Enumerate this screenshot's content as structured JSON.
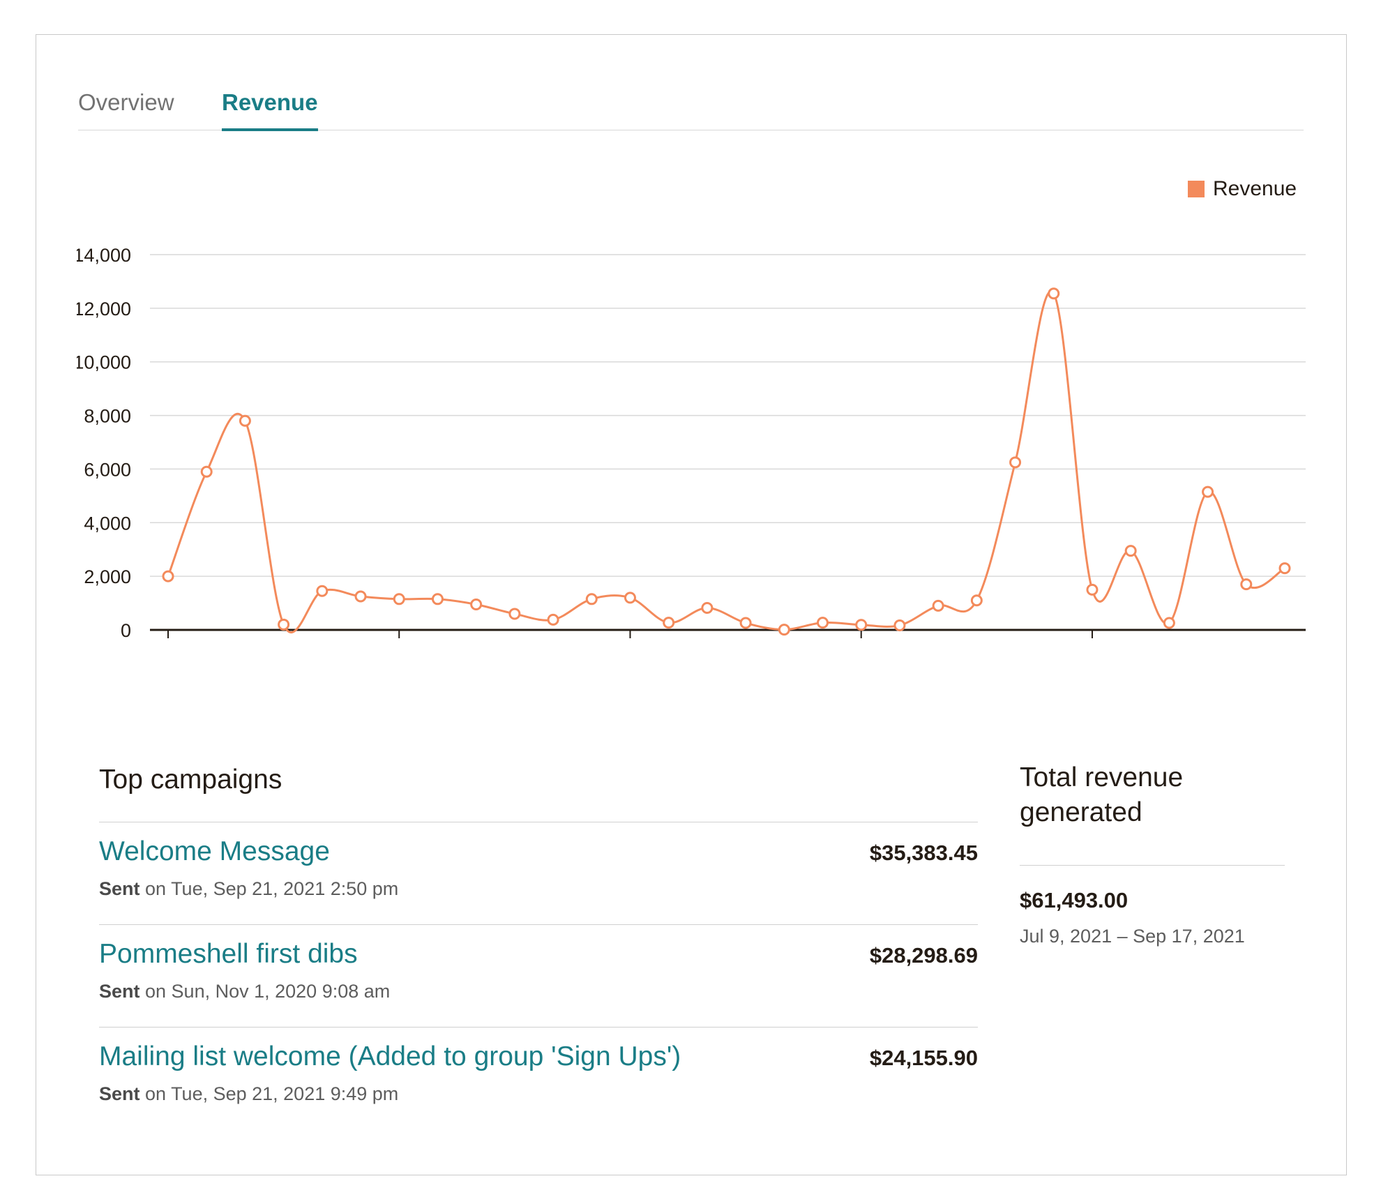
{
  "tabs": [
    {
      "label": "Overview",
      "active": false
    },
    {
      "label": "Revenue",
      "active": true
    }
  ],
  "legend": {
    "label": "Revenue",
    "color": "#f38a5b"
  },
  "chart_data": {
    "type": "line",
    "series": [
      {
        "name": "Revenue",
        "color": "#f38a5b",
        "values": [
          2000,
          5900,
          7800,
          200,
          1450,
          1250,
          1150,
          1150,
          950,
          600,
          380,
          1150,
          1200,
          270,
          820,
          260,
          10,
          270,
          190,
          170,
          900,
          1100,
          6250,
          12550,
          1500,
          2950,
          260,
          5150,
          1700,
          2300
        ]
      }
    ],
    "ylim": [
      0,
      14000
    ],
    "yticks": [
      "0",
      "2,000",
      "4,000",
      "6,000",
      "8,000",
      "10,000",
      "12,000",
      "14,000"
    ],
    "xtick_every": 6,
    "grid": true,
    "legend_position": "top-right"
  },
  "top_campaigns": {
    "title": "Top campaigns",
    "items": [
      {
        "name": "Welcome Message",
        "amount": "$35,383.45",
        "sent_prefix": "Sent",
        "sent_rest": " on Tue, Sep 21, 2021 2:50 pm"
      },
      {
        "name": "Pommeshell first dibs",
        "amount": "$28,298.69",
        "sent_prefix": "Sent",
        "sent_rest": " on Sun, Nov 1, 2020 9:08 am"
      },
      {
        "name": "Mailing list welcome (Added to group 'Sign Ups')",
        "amount": "$24,155.90",
        "sent_prefix": "Sent",
        "sent_rest": " on Tue, Sep 21, 2021 9:49 pm"
      }
    ]
  },
  "total_revenue": {
    "title": "Total revenue generated",
    "amount": "$61,493.00",
    "range": "Jul 9, 2021 – Sep 17, 2021"
  }
}
